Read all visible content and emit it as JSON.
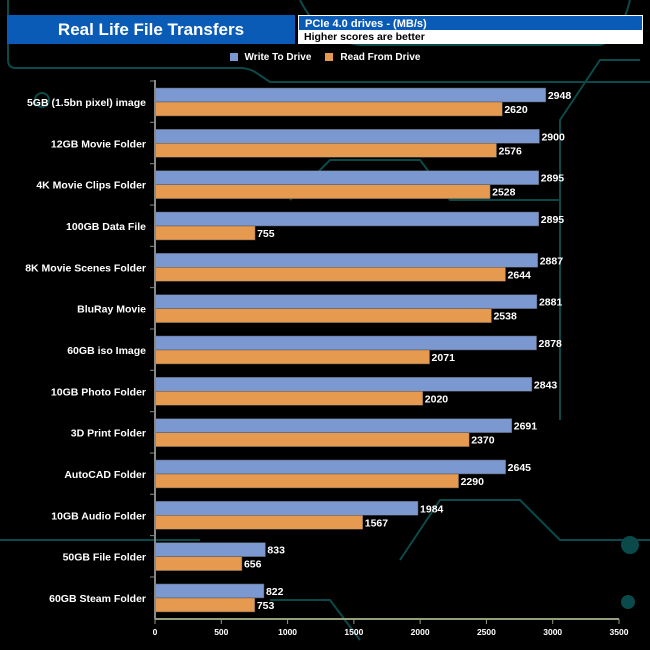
{
  "chart_data": {
    "type": "bar",
    "orientation": "horizontal",
    "title": "Real Life File Transfers",
    "subtitle": "PCIe 4.0 drives - (MB/s)",
    "note": "Higher scores are better",
    "categories": [
      "5GB (1.5bn pixel) image",
      "12GB Movie Folder",
      "4K Movie Clips Folder",
      "100GB Data File",
      "8K Movie Scenes Folder",
      "BluRay Movie",
      "60GB iso Image",
      "10GB Photo Folder",
      "3D Print Folder",
      "AutoCAD Folder",
      "10GB Audio Folder",
      "50GB File Folder",
      "60GB Steam Folder"
    ],
    "series": [
      {
        "name": "Write To  Drive",
        "color": "#7b98d0",
        "values": [
          2948,
          2900,
          2895,
          2895,
          2887,
          2881,
          2878,
          2843,
          2691,
          2645,
          1984,
          833,
          822
        ]
      },
      {
        "name": "Read From  Drive",
        "color": "#e59a50",
        "values": [
          2620,
          2576,
          2528,
          755,
          2644,
          2538,
          2071,
          2020,
          2370,
          2290,
          1567,
          656,
          753
        ]
      }
    ],
    "xlim": [
      0,
      3500
    ],
    "xticks": [
      0,
      500,
      1000,
      1500,
      2000,
      2500,
      3000,
      3500
    ],
    "legend": "top-center",
    "grid": false
  }
}
